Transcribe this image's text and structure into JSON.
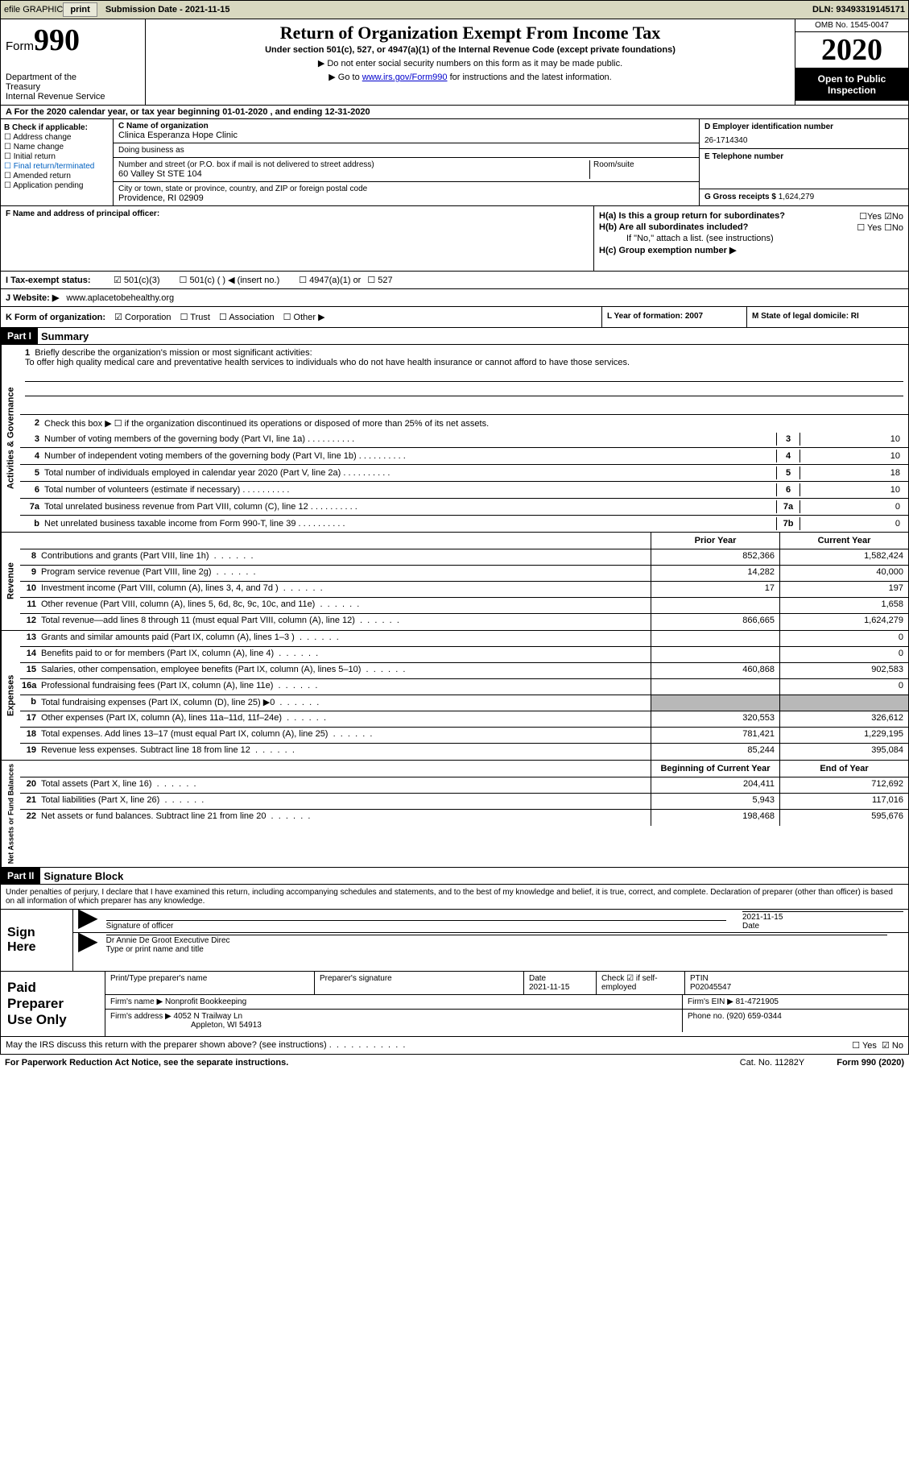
{
  "top_bar": {
    "efile_label": "efile GRAPHIC",
    "print_btn": "print",
    "submission_label": "Submission Date - 2021-11-15",
    "dln": "DLN: 93493319145171"
  },
  "header": {
    "form_label": "Form",
    "form_number": "990",
    "dept": "Department of the Treasury\nInternal Revenue Service",
    "title": "Return of Organization Exempt From Income Tax",
    "subtitle": "Under section 501(c), 527, or 4947(a)(1) of the Internal Revenue Code (except private foundations)",
    "note1": "▶ Do not enter social security numbers on this form as it may be made public.",
    "note2_pre": "▶ Go to ",
    "note2_link": "www.irs.gov/Form990",
    "note2_post": " for instructions and the latest information.",
    "omb": "OMB No. 1545-0047",
    "year": "2020",
    "open": "Open to Public Inspection"
  },
  "period": "A For the 2020 calendar year, or tax year beginning 01-01-2020   , and ending 12-31-2020",
  "section_b": {
    "header": "B Check if applicable:",
    "items": [
      "☐ Address change",
      "☐ Name change",
      "☐ Initial return",
      "☐ Final return/terminated",
      "☐ Amended return",
      "☐ Application pending"
    ],
    "c_label": "C Name of organization",
    "org_name": "Clinica Esperanza Hope Clinic",
    "dba_label": "Doing business as",
    "street_label": "Number and street (or P.O. box if mail is not delivered to street address)",
    "street": "60 Valley St STE 104",
    "room_label": "Room/suite",
    "city_label": "City or town, state or province, country, and ZIP or foreign postal code",
    "city": "Providence, RI  02909",
    "d_label": "D Employer identification number",
    "ein": "26-1714340",
    "e_label": "E Telephone number",
    "g_label": "G Gross receipts $",
    "gross": "1,624,279"
  },
  "officer": {
    "f_label": "F  Name and address of principal officer:",
    "ha": "H(a)  Is this a group return for subordinates?",
    "ha_no": "☑No",
    "ha_yes": "☐Yes",
    "hb": "H(b)  Are all subordinates included?",
    "hb_yes": "☐ Yes",
    "hb_no": "☐No",
    "hb_note": "If \"No,\" attach a list. (see instructions)",
    "hc": "H(c)  Group exemption number ▶"
  },
  "tax_status": {
    "label": "I   Tax-exempt status:",
    "opts": [
      "☑ 501(c)(3)",
      "☐ 501(c) (  ) ◀ (insert no.)",
      "☐ 4947(a)(1) or",
      "☐ 527"
    ]
  },
  "website": {
    "label": "J   Website: ▶",
    "val": "www.aplacetobehealthy.org"
  },
  "k_row": {
    "label": "K Form of organization:",
    "opts": [
      "☑ Corporation",
      "☐ Trust",
      "☐ Association",
      "☐ Other ▶"
    ],
    "l": "L Year of formation: 2007",
    "m": "M State of legal domicile: RI"
  },
  "part1": {
    "header": "Part I",
    "title": "Summary",
    "line1_label": "Briefly describe the organization's mission or most significant activities:",
    "mission": "To offer high quality medical care and preventative health services to individuals who do not have health insurance or cannot afford to have those services.",
    "line2": "Check this box ▶ ☐  if the organization discontinued its operations or disposed of more than 25% of its net assets.",
    "gov_lines": [
      {
        "n": "3",
        "t": "Number of voting members of the governing body (Part VI, line 1a)",
        "box": "3",
        "v": "10"
      },
      {
        "n": "4",
        "t": "Number of independent voting members of the governing body (Part VI, line 1b)",
        "box": "4",
        "v": "10"
      },
      {
        "n": "5",
        "t": "Total number of individuals employed in calendar year 2020 (Part V, line 2a)",
        "box": "5",
        "v": "18"
      },
      {
        "n": "6",
        "t": "Total number of volunteers (estimate if necessary)",
        "box": "6",
        "v": "10"
      },
      {
        "n": "7a",
        "t": "Total unrelated business revenue from Part VIII, column (C), line 12",
        "box": "7a",
        "v": "0"
      },
      {
        "n": "b",
        "t": "Net unrelated business taxable income from Form 990-T, line 39",
        "box": "7b",
        "v": "0"
      }
    ],
    "col_prior": "Prior Year",
    "col_current": "Current Year",
    "revenue": [
      {
        "n": "8",
        "t": "Contributions and grants (Part VIII, line 1h)",
        "p": "852,366",
        "c": "1,582,424"
      },
      {
        "n": "9",
        "t": "Program service revenue (Part VIII, line 2g)",
        "p": "14,282",
        "c": "40,000"
      },
      {
        "n": "10",
        "t": "Investment income (Part VIII, column (A), lines 3, 4, and 7d )",
        "p": "17",
        "c": "197"
      },
      {
        "n": "11",
        "t": "Other revenue (Part VIII, column (A), lines 5, 6d, 8c, 9c, 10c, and 11e)",
        "p": "",
        "c": "1,658"
      },
      {
        "n": "12",
        "t": "Total revenue—add lines 8 through 11 (must equal Part VIII, column (A), line 12)",
        "p": "866,665",
        "c": "1,624,279"
      }
    ],
    "expenses": [
      {
        "n": "13",
        "t": "Grants and similar amounts paid (Part IX, column (A), lines 1–3 )",
        "p": "",
        "c": "0"
      },
      {
        "n": "14",
        "t": "Benefits paid to or for members (Part IX, column (A), line 4)",
        "p": "",
        "c": "0"
      },
      {
        "n": "15",
        "t": "Salaries, other compensation, employee benefits (Part IX, column (A), lines 5–10)",
        "p": "460,868",
        "c": "902,583"
      },
      {
        "n": "16a",
        "t": "Professional fundraising fees (Part IX, column (A), line 11e)",
        "p": "",
        "c": "0"
      },
      {
        "n": "b",
        "t": "Total fundraising expenses (Part IX, column (D), line 25) ▶0",
        "p": "GREY",
        "c": "GREY"
      },
      {
        "n": "17",
        "t": "Other expenses (Part IX, column (A), lines 11a–11d, 11f–24e)",
        "p": "320,553",
        "c": "326,612"
      },
      {
        "n": "18",
        "t": "Total expenses. Add lines 13–17 (must equal Part IX, column (A), line 25)",
        "p": "781,421",
        "c": "1,229,195"
      },
      {
        "n": "19",
        "t": "Revenue less expenses. Subtract line 18 from line 12",
        "p": "85,244",
        "c": "395,084"
      }
    ],
    "col_begin": "Beginning of Current Year",
    "col_end": "End of Year",
    "balances": [
      {
        "n": "20",
        "t": "Total assets (Part X, line 16)",
        "p": "204,411",
        "c": "712,692"
      },
      {
        "n": "21",
        "t": "Total liabilities (Part X, line 26)",
        "p": "5,943",
        "c": "117,016"
      },
      {
        "n": "22",
        "t": "Net assets or fund balances. Subtract line 21 from line 20",
        "p": "198,468",
        "c": "595,676"
      }
    ]
  },
  "part2": {
    "header": "Part II",
    "title": "Signature Block",
    "intro": "Under penalties of perjury, I declare that I have examined this return, including accompanying schedules and statements, and to the best of my knowledge and belief, it is true, correct, and complete. Declaration of preparer (other than officer) is based on all information of which preparer has any knowledge."
  },
  "sign": {
    "label": "Sign Here",
    "sig_officer": "Signature of officer",
    "date_val": "2021-11-15",
    "date_label": "Date",
    "name": "Dr Annie De Groot  Executive Direc",
    "name_label": "Type or print name and title"
  },
  "preparer": {
    "label": "Paid Preparer Use Only",
    "h_name": "Print/Type preparer's name",
    "h_sig": "Preparer's signature",
    "h_date": "Date",
    "date_val": "2021-11-15",
    "h_check": "Check ☑ if self-employed",
    "h_ptin": "PTIN",
    "ptin": "P02045547",
    "firm_name_label": "Firm's name    ▶",
    "firm_name": "Nonprofit Bookkeeping",
    "firm_ein_label": "Firm's EIN ▶",
    "firm_ein": "81-4721905",
    "firm_addr_label": "Firm's address ▶",
    "firm_addr": "4052 N Trailway Ln",
    "firm_city": "Appleton, WI  54913",
    "phone_label": "Phone no.",
    "phone": "(920) 659-0344"
  },
  "discuss": {
    "text": "May the IRS discuss this return with the preparer shown above? (see instructions)",
    "yes": "☐ Yes",
    "no": "☑ No"
  },
  "footer": {
    "pra": "For Paperwork Reduction Act Notice, see the separate instructions.",
    "cat": "Cat. No. 11282Y",
    "form": "Form 990 (2020)"
  },
  "side_labels": {
    "gov": "Activities & Governance",
    "rev": "Revenue",
    "exp": "Expenses",
    "bal": "Net Assets or Fund Balances"
  }
}
